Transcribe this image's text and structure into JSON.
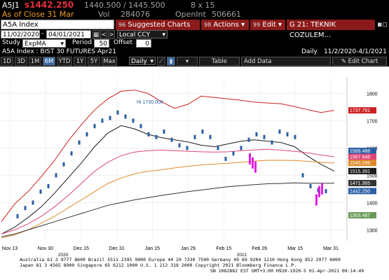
{
  "quote": {
    "ticker": "A5J1",
    "last": "s1442.250",
    "bid_ask": "1440.500 / 1445.500",
    "size": "8 x 15",
    "as_of": "As of Close 31 Mar",
    "vol_label": "Vol",
    "volume": "284076",
    "oi_label": "OpenInt",
    "open_interest": "506661"
  },
  "toolbar": {
    "security": "A5A Index",
    "nav_prev": "<",
    "nav_next": ">",
    "suggested_num": "96",
    "suggested_label": "Suggested Charts",
    "actions_num": "98",
    "actions_label": "Actions",
    "edit_num": "99",
    "edit_label": "Edit",
    "title": "G 21: TEKNIK COZULEM..."
  },
  "dates": {
    "start": "11/02/2020",
    "end": "04/01/2021",
    "ccy": "Local CCY"
  },
  "study": {
    "label": "Study",
    "value": "ExpMA",
    "period_label": "Period",
    "period": "50",
    "offset_label": "Offset",
    "offset": "0"
  },
  "header": {
    "name": "A5A Index : BIST 30 FUTURES   Apr21",
    "freq": "Daily",
    "range": "11/2/2020-4/1/2021"
  },
  "periods": [
    "1D",
    "3D",
    "1M",
    "6M",
    "YTD",
    "1Y",
    "5Y",
    "Max"
  ],
  "period_selected": "6M",
  "freq_select": "Daily",
  "table_btn": "Table",
  "add_data": "Add Data",
  "edit_chart": "Edit Chart",
  "chart_data": {
    "type": "line",
    "title": "",
    "ylim": [
      1260,
      1860
    ],
    "yticks": [
      1300,
      1400,
      1500,
      1600,
      1700,
      1800
    ],
    "xticks": [
      "Nov 13",
      "Nov 30",
      "Dec 15",
      "Dec 31",
      "Jan 15",
      "Jan 29",
      "Feb 15",
      "Feb 26",
      "Mar 15",
      "Mar 31"
    ],
    "year_labels": [
      "2020",
      "2021"
    ],
    "annotation": "Hi 1730.000",
    "series": [
      {
        "color": "#cc2020",
        "values": [
          1330,
          1395,
          1440,
          1495,
          1555,
          1625,
          1685,
          1740,
          1780,
          1808,
          1812,
          1800,
          1770,
          1745,
          1760,
          1790,
          1785,
          1780,
          1775,
          1768,
          1765,
          1762,
          1752,
          1740,
          1730,
          1738
        ]
      },
      {
        "color": "#1a1a1a",
        "values": [
          1285,
          1310,
          1345,
          1385,
          1435,
          1490,
          1545,
          1605,
          1655,
          1682,
          1670,
          1650,
          1638,
          1630,
          1622,
          1610,
          1605,
          1615,
          1625,
          1630,
          1625,
          1620,
          1605,
          1570,
          1540,
          1515
        ]
      },
      {
        "color": "#e0457a",
        "values": [
          1285,
          1300,
          1322,
          1350,
          1385,
          1425,
          1470,
          1515,
          1548,
          1572,
          1585,
          1590,
          1592,
          1590,
          1588,
          1586,
          1585,
          1586,
          1590,
          1593,
          1595,
          1592,
          1588,
          1582,
          1574,
          1568
        ]
      },
      {
        "color": "#e08a2a",
        "values": [
          1270,
          1282,
          1300,
          1325,
          1350,
          1380,
          1410,
          1440,
          1470,
          1490,
          1505,
          1515,
          1520,
          1527,
          1533,
          1538,
          1541,
          1544,
          1548,
          1552,
          1555,
          1555,
          1554,
          1551,
          1548,
          1545
        ]
      },
      {
        "color": "#333333",
        "values": [
          1275,
          1285,
          1300,
          1315,
          1330,
          1345,
          1360,
          1375,
          1390,
          1400,
          1410,
          1418,
          1426,
          1433,
          1440,
          1446,
          1452,
          1458,
          1462,
          1466,
          1469,
          1470,
          1472,
          1471,
          1471,
          1471
        ]
      }
    ],
    "price_bars": {
      "color": "#2a5fa5",
      "values": [
        1350,
        1380,
        1400,
        1440,
        1460,
        1500,
        1540,
        1580,
        1620,
        1650,
        1680,
        1700,
        1710,
        1730,
        1715,
        1700,
        1680,
        1650,
        1640,
        1660,
        1630,
        1610,
        1600,
        1640,
        1660,
        1640,
        1600,
        1560,
        1580,
        1600,
        1630,
        1650,
        1640,
        1620,
        1660,
        1650,
        1640,
        1500,
        1460,
        1445,
        1442
      ]
    },
    "down_bars": {
      "color": "#e020e0",
      "values": [
        1560,
        1545,
        1530,
        1410,
        1440,
        1450
      ]
    },
    "price_labels": [
      {
        "value": 1737.791,
        "text": "1737.791",
        "bg": "#cc2020"
      },
      {
        "value": 1589.488,
        "text": "1589.488",
        "bg": "#2a5fa5"
      },
      {
        "value": 1567.648,
        "text": "1567.648",
        "bg": "#e0457a"
      },
      {
        "value": 1545.299,
        "text": "1545.299",
        "bg": "#e08a2a"
      },
      {
        "value": 1515.391,
        "text": "1515.391",
        "bg": "#1a1a1a"
      },
      {
        "value": 1471.365,
        "text": "1471.365",
        "bg": "#333333"
      },
      {
        "value": 1442.25,
        "text": "1442.250",
        "bg": "#2a5fa5"
      },
      {
        "value": 1353.487,
        "text": "1353.487",
        "bg": "#6a9a5a"
      }
    ]
  },
  "footer": {
    "line1": "Australia 61 2 9777 8600 Brazil 5511 2395 9000 Europe 44 20 7330 7500 Germany 49 69 9204 1210 Hong Kong 852 2977 6000",
    "line2": "Japan 81 3 4565 8900          Singapore 65 6212 1000        U.S. 1 212 318 2000          Copyright 2021 Bloomberg Finance L.P.",
    "line3": "SN 1082882 EST  GMT+3:00 H920-1920-5 01-Apr-2021 09:14:49"
  }
}
